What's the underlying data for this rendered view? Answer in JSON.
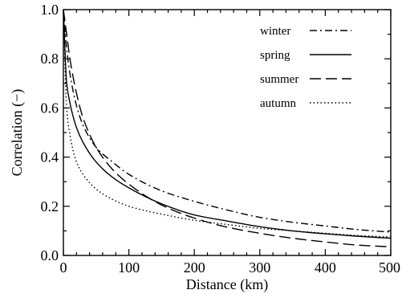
{
  "chart_data": {
    "type": "line",
    "xlabel": "Distance (km)",
    "ylabel": "Correlation (−)",
    "xlim": [
      0,
      500
    ],
    "ylim": [
      0.0,
      1.0
    ],
    "xticks": [
      0,
      100,
      200,
      300,
      400,
      500
    ],
    "xtick_labels": [
      "0",
      "100",
      "200",
      "300",
      "400",
      "500"
    ],
    "yticks": [
      0.0,
      0.2,
      0.4,
      0.6,
      0.8,
      1.0
    ],
    "ytick_labels": [
      "0.0",
      "0.2",
      "0.4",
      "0.6",
      "0.8",
      "1.0"
    ],
    "grid": false,
    "legend_position": "top-right",
    "line_color": "#000000",
    "x": [
      0,
      5,
      10,
      20,
      30,
      50,
      75,
      100,
      150,
      200,
      250,
      300,
      350,
      400,
      450,
      500
    ],
    "series": [
      {
        "name": "winter",
        "dash": "dash-dot",
        "values": [
          1.0,
          0.84,
          0.74,
          0.61,
          0.53,
          0.44,
          0.38,
          0.33,
          0.263,
          0.22,
          0.185,
          0.155,
          0.135,
          0.12,
          0.105,
          0.095
        ]
      },
      {
        "name": "spring",
        "dash": "solid",
        "values": [
          1.0,
          0.7,
          0.62,
          0.52,
          0.46,
          0.38,
          0.318,
          0.275,
          0.21,
          0.165,
          0.14,
          0.117,
          0.1,
          0.088,
          0.078,
          0.07
        ]
      },
      {
        "name": "summer",
        "dash": "long-dash",
        "values": [
          1.0,
          0.9,
          0.8,
          0.66,
          0.56,
          0.44,
          0.35,
          0.29,
          0.205,
          0.152,
          0.115,
          0.09,
          0.07,
          0.055,
          0.042,
          0.035
        ]
      },
      {
        "name": "autumn",
        "dash": "dotted",
        "values": [
          1.0,
          0.6,
          0.49,
          0.38,
          0.33,
          0.27,
          0.228,
          0.2,
          0.168,
          0.143,
          0.126,
          0.11,
          0.1,
          0.09,
          0.081,
          0.075
        ]
      }
    ]
  }
}
